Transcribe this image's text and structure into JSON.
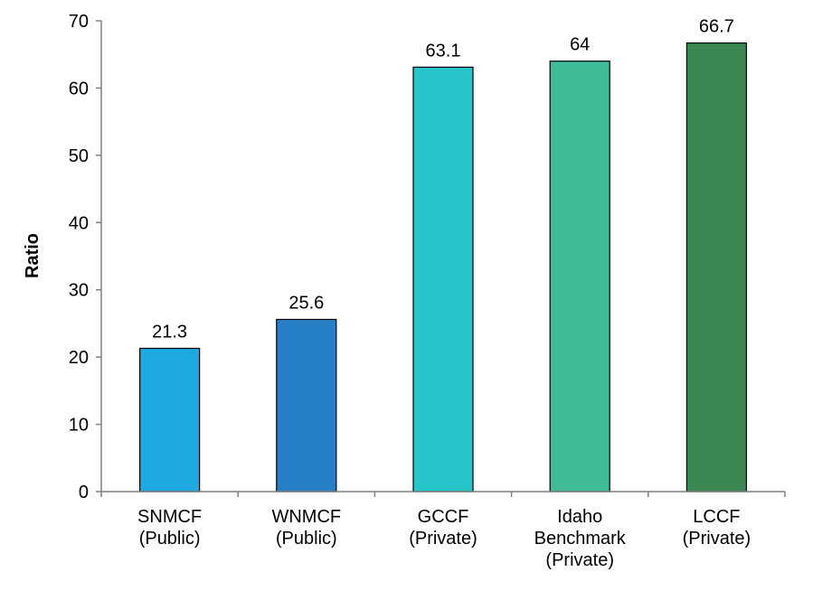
{
  "chart_data": {
    "type": "bar",
    "title": "",
    "xlabel": "",
    "ylabel": "Ratio",
    "ylim": [
      0,
      70
    ],
    "yticks": [
      0,
      10,
      20,
      30,
      40,
      50,
      60,
      70
    ],
    "grid": false,
    "categories": [
      [
        "SNMCF",
        "(Public)"
      ],
      [
        "WNMCF",
        "(Public)"
      ],
      [
        "GCCF",
        "(Private)"
      ],
      [
        "Idaho",
        "Benchmark",
        "(Private)"
      ],
      [
        "LCCF",
        "(Private)"
      ]
    ],
    "values": [
      21.3,
      25.6,
      63.1,
      64,
      66.7
    ],
    "data_labels": [
      "21.3",
      "25.6",
      "63.1",
      "64",
      "66.7"
    ],
    "colors": [
      "#1fa9e1",
      "#2780c5",
      "#27c4c9",
      "#3fbb98",
      "#3b8753"
    ]
  }
}
